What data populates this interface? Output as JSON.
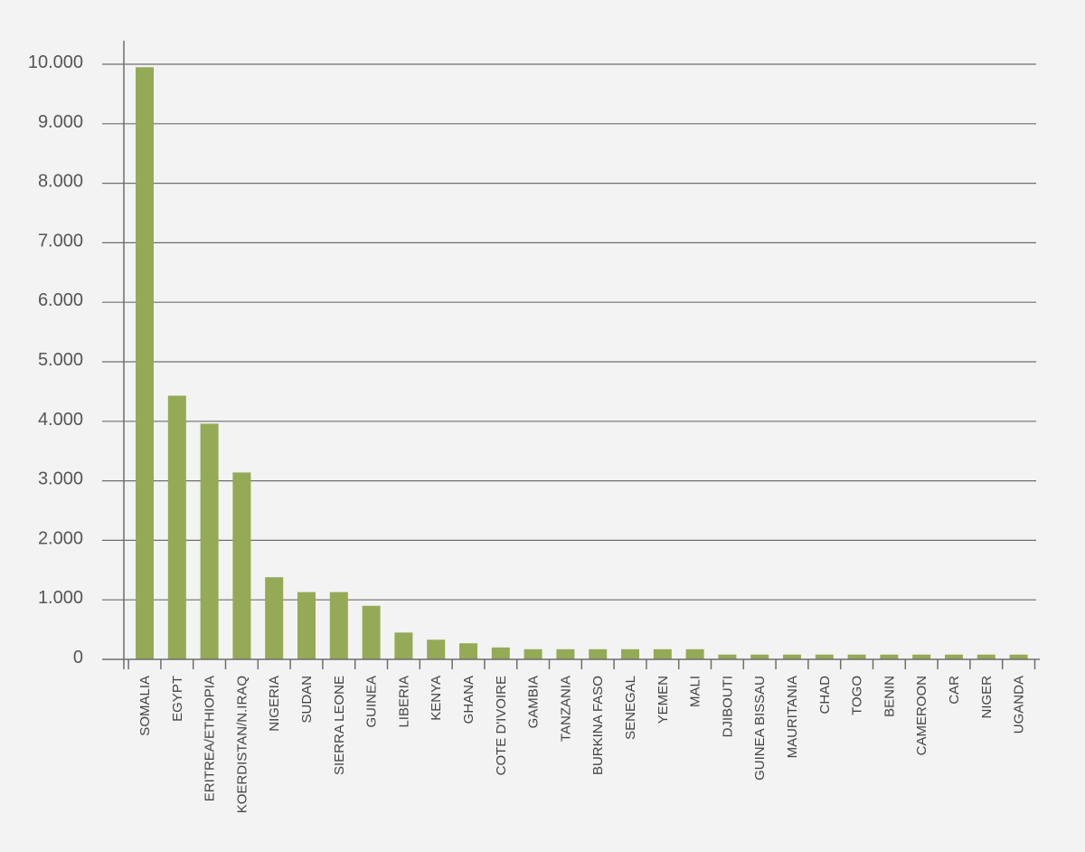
{
  "chart_data": {
    "type": "bar",
    "title": "",
    "xlabel": "",
    "ylabel": "",
    "ylim": [
      0,
      10000
    ],
    "grid": true,
    "bar_color": "#94aa56",
    "background_color": "#f3f3f3",
    "yticks": [
      0,
      1000,
      2000,
      3000,
      4000,
      5000,
      6000,
      7000,
      8000,
      9000,
      10000
    ],
    "ytick_labels": [
      "0",
      "1.000",
      "2.000",
      "3.000",
      "4.000",
      "5.000",
      "6.000",
      "7.000",
      "8.000",
      "9.000",
      "10.000"
    ],
    "categories": [
      "SOMALIA",
      "EGYPT",
      "ERITREA/ETHIOPIA",
      "KOERDISTAN/N.IRAQ",
      "NIGERIA",
      "SUDAN",
      "SIERRA LEONE",
      "GUINEA",
      "LIBERIA",
      "KENYA",
      "GHANA",
      "COTE D'IVOIRE",
      "GAMBIA",
      "TANZANIA",
      "BURKINA FASO",
      "SENEGAL",
      "YEMEN",
      "MALI",
      "DJIBOUTI",
      "GUINEA BISSAU",
      "MAURITANIA",
      "CHAD",
      "TOGO",
      "BENIN",
      "CAMEROON",
      "CAR",
      "NIGER",
      "UGANDA"
    ],
    "values": [
      9950,
      4430,
      3960,
      3140,
      1380,
      1130,
      1130,
      900,
      450,
      330,
      270,
      200,
      170,
      170,
      170,
      170,
      170,
      170,
      80,
      80,
      80,
      80,
      80,
      80,
      80,
      80,
      80,
      80
    ]
  }
}
